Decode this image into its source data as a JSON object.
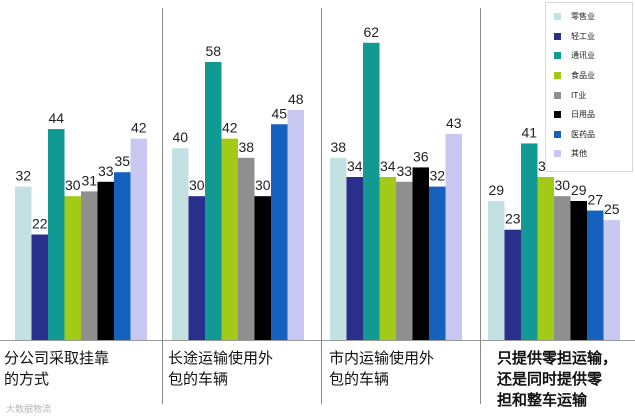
{
  "chart_data": {
    "type": "bar",
    "categories": [
      "分公司采取挂靠\n的方式",
      "长途运输使用外\n包的车辆",
      "市内运输使用外\n包的车辆",
      "只提供零担运输，\n还是同时提供零\n担和整车运输"
    ],
    "series": [
      {
        "name": "零售业",
        "color": "#c3e0e2",
        "values": [
          32,
          40,
          38,
          29
        ]
      },
      {
        "name": "轻工业",
        "color": "#2b2f8c",
        "values": [
          22,
          30,
          34,
          23
        ]
      },
      {
        "name": "通讯业",
        "color": "#109a93",
        "values": [
          44,
          58,
          62,
          41
        ]
      },
      {
        "name": "食品业",
        "color": "#a2ca16",
        "values": [
          30,
          42,
          34,
          34
        ]
      },
      {
        "name": "IT业",
        "color": "#8f8f8f",
        "values": [
          31,
          38,
          33,
          30
        ]
      },
      {
        "name": "日用品",
        "color": "#000000",
        "values": [
          33,
          30,
          36,
          29
        ]
      },
      {
        "name": "医药品",
        "color": "#1462bd",
        "values": [
          35,
          45,
          32,
          27
        ]
      },
      {
        "name": "其他",
        "color": "#c9c8f2",
        "values": [
          42,
          48,
          43,
          25
        ]
      }
    ],
    "ylim": [
      0,
      68
    ],
    "legend_position": "top-right"
  },
  "watermark": "大数据物流"
}
